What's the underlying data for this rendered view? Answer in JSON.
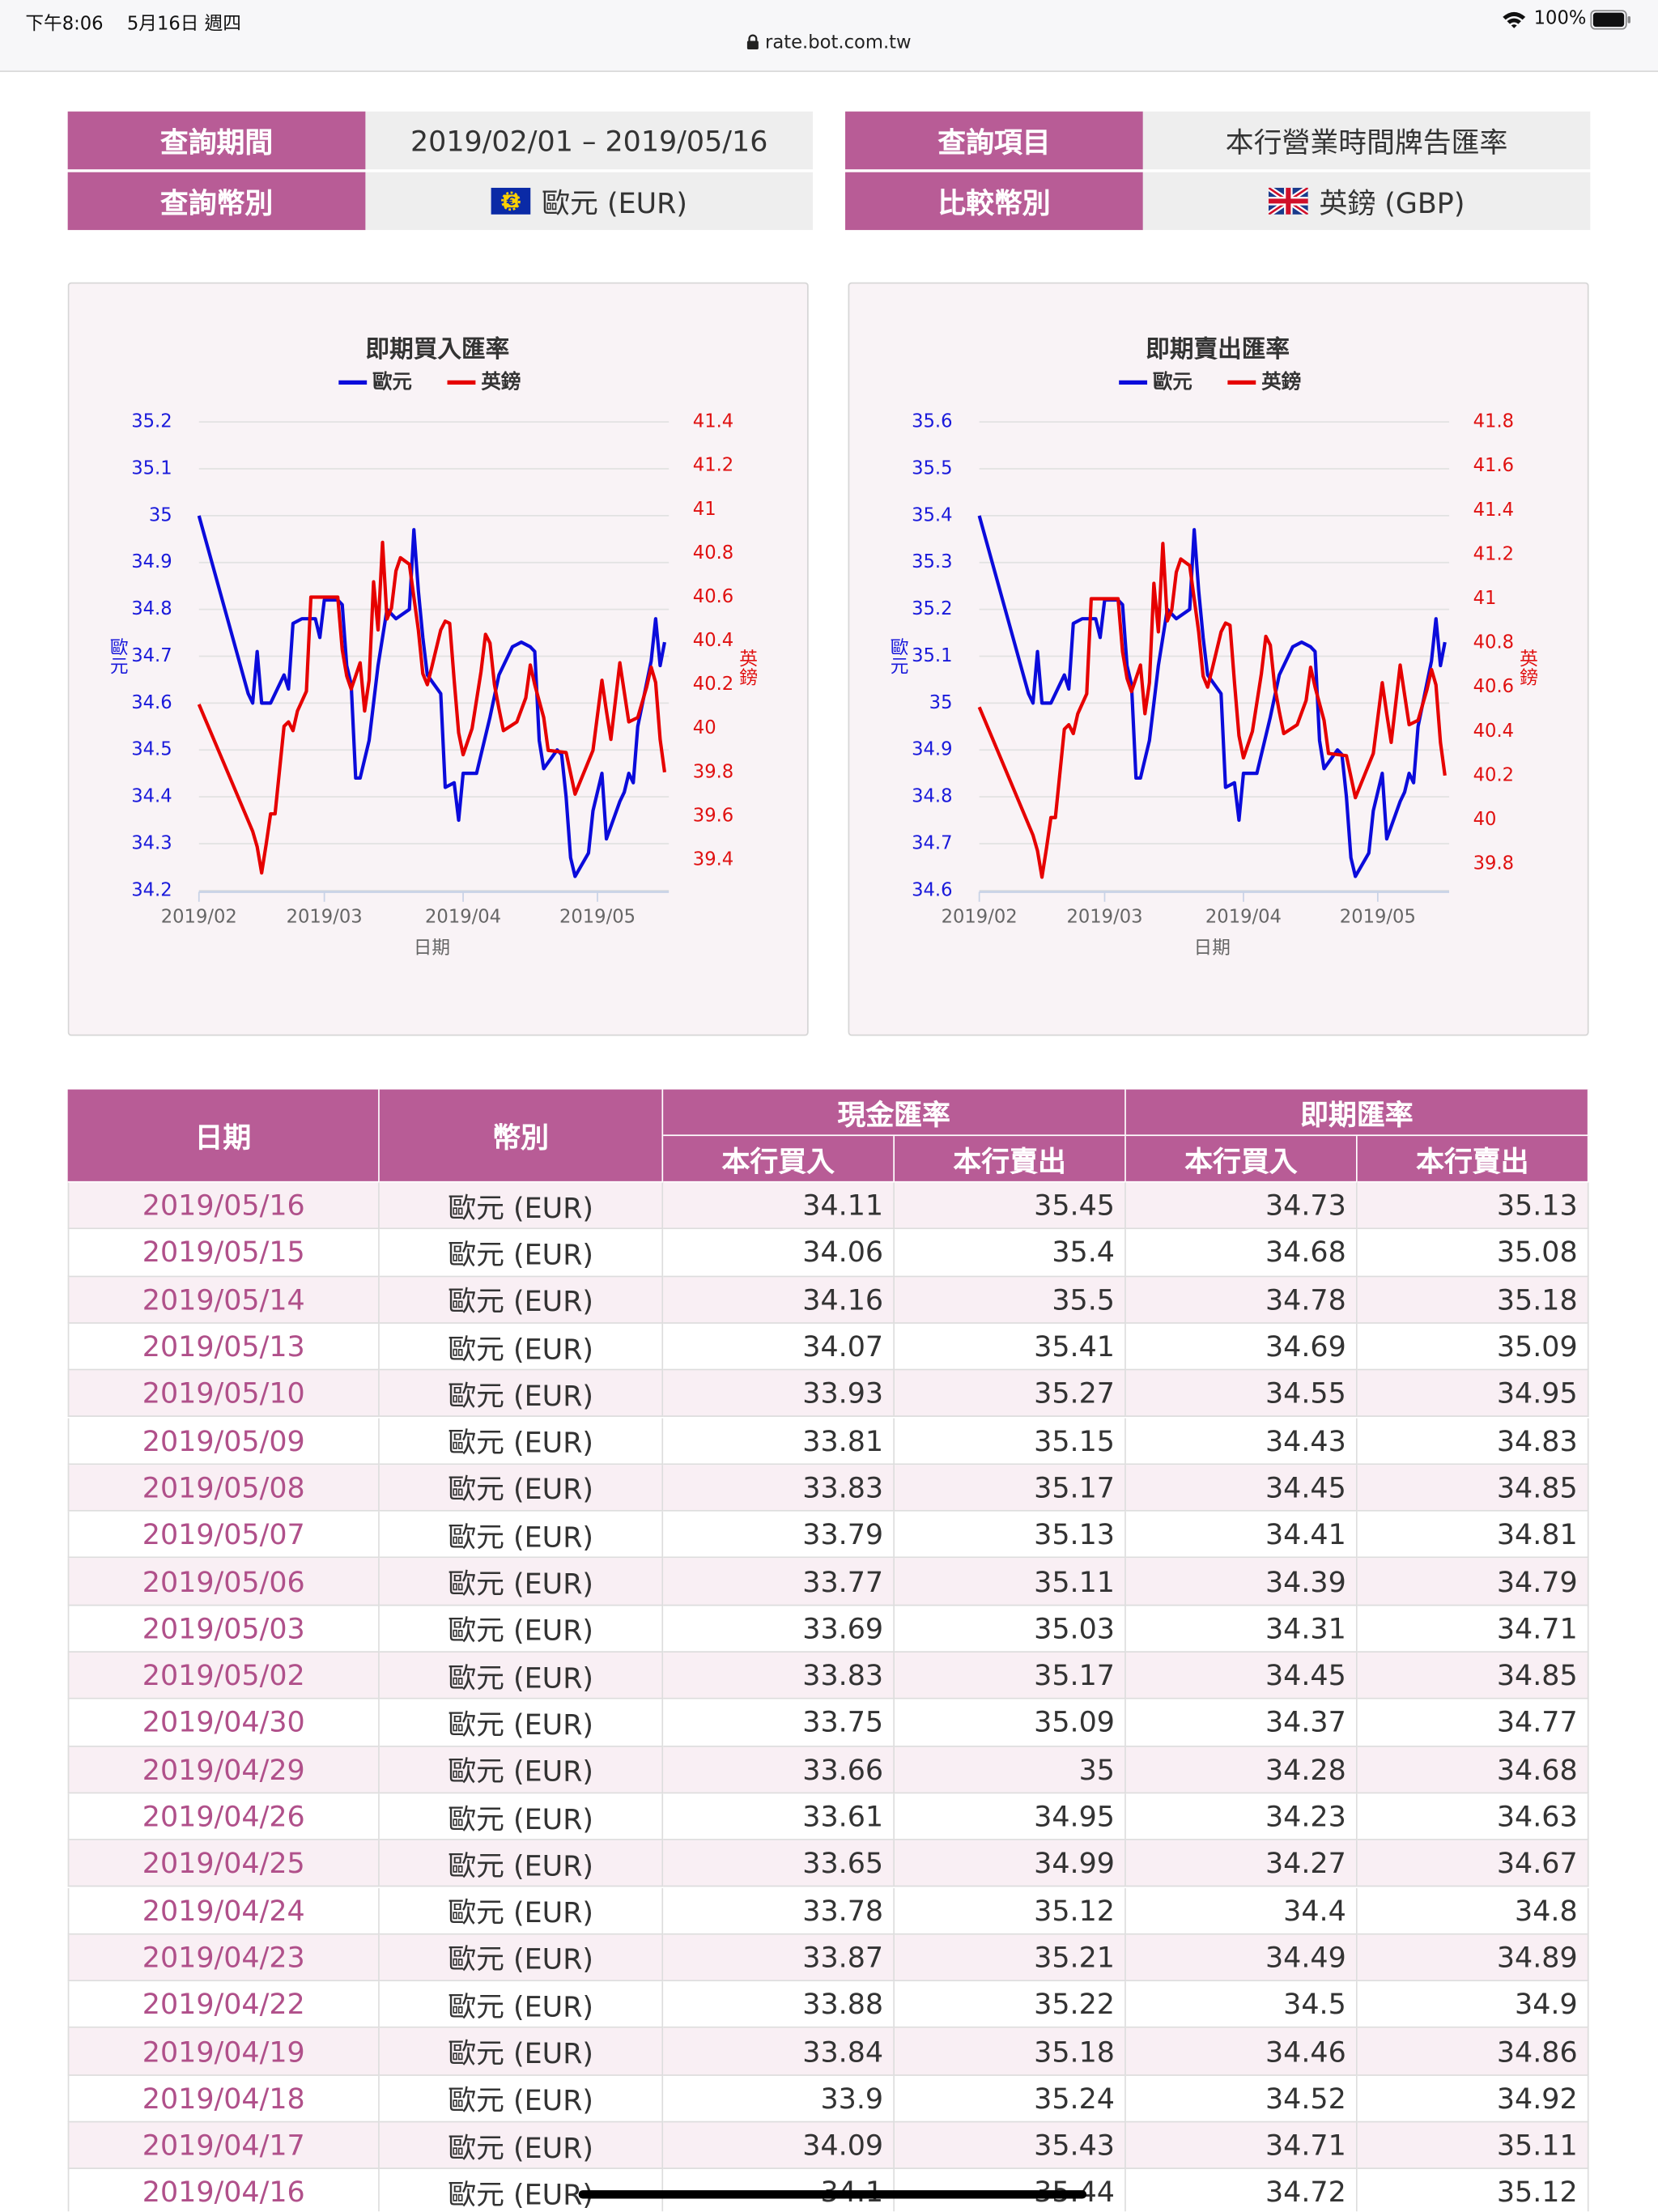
{
  "status_bar": {
    "time": "下午8:06",
    "date": "5月16日 週四",
    "battery": "100%"
  },
  "url": "rate.bot.com.tw",
  "query": {
    "period_label": "查詢期間",
    "period": "2019/02/01 – 2019/05/16",
    "currency_label": "查詢幣別",
    "currency": "歐元 (EUR)",
    "item_label": "查詢項目",
    "item": "本行營業時間牌告匯率",
    "compare_label": "比較幣別",
    "compare": "英鎊 (GBP)"
  },
  "charts": [
    {
      "type": "line",
      "title": "即期買入匯率",
      "x_label": "日期",
      "y_label": "歐元",
      "y2_label": "英鎊",
      "xlim": [
        0,
        104
      ],
      "xticks": [
        {
          "value": 0,
          "label": "2019/02"
        },
        {
          "value": 28,
          "label": "2019/03"
        },
        {
          "value": 59,
          "label": "2019/04"
        },
        {
          "value": 89,
          "label": "2019/05"
        }
      ],
      "ylim": [
        34.2,
        35.2
      ],
      "yticks": [
        34.2,
        34.3,
        34.4,
        34.5,
        34.6,
        34.7,
        34.8,
        34.9,
        35,
        35.1,
        35.2
      ],
      "y2lim": [
        39.26,
        41.4
      ],
      "y2ticks": [
        39.4,
        39.6,
        39.8,
        40,
        40.2,
        40.4,
        40.6,
        40.8,
        41,
        41.2,
        41.4
      ],
      "grid": true,
      "series": [
        {
          "name": "歐元",
          "color": "#0b0bdb",
          "x": [
            0,
            11,
            12,
            13,
            14,
            16,
            18,
            19,
            20,
            21,
            23,
            26,
            27,
            28,
            31,
            32,
            33,
            34,
            35,
            36,
            38,
            40,
            42,
            44,
            47,
            48,
            49,
            50,
            51,
            54,
            55,
            57,
            58,
            59,
            62,
            65,
            67,
            70,
            72,
            74,
            75,
            76,
            77,
            80,
            81,
            82,
            83,
            84,
            87,
            88,
            90,
            91,
            94,
            95,
            96,
            97,
            98,
            101,
            102,
            103,
            104
          ],
          "values": [
            35,
            34.62,
            34.6,
            34.71,
            34.6,
            34.6,
            34.64,
            34.66,
            34.63,
            34.77,
            34.78,
            34.78,
            34.74,
            34.82,
            34.82,
            34.81,
            34.68,
            34.64,
            34.44,
            34.44,
            34.52,
            34.68,
            34.8,
            34.78,
            34.8,
            34.97,
            34.84,
            34.74,
            34.66,
            34.62,
            34.42,
            34.43,
            34.35,
            34.45,
            34.45,
            34.57,
            34.66,
            34.72,
            34.73,
            34.72,
            34.71,
            34.52,
            34.46,
            34.5,
            34.49,
            34.4,
            34.27,
            34.23,
            34.28,
            34.37,
            34.45,
            34.31,
            34.39,
            34.41,
            34.45,
            34.43,
            34.55,
            34.69,
            34.78,
            34.68,
            34.73
          ]
        },
        {
          "name": "英鎊",
          "color": "#e60000",
          "axis": "y2",
          "x": [
            0,
            12,
            13,
            14,
            15,
            16,
            17,
            19,
            20,
            21,
            22,
            24,
            25,
            31,
            32,
            33,
            34,
            36,
            37,
            38,
            39,
            40,
            41,
            42,
            43,
            44,
            45,
            47,
            48,
            49,
            50,
            51,
            52,
            54,
            55,
            56,
            57,
            58,
            59,
            61,
            63,
            64,
            65,
            66,
            67,
            68,
            71,
            73,
            74,
            75,
            77,
            78,
            82,
            84,
            86,
            88,
            90,
            91,
            92,
            94,
            96,
            98,
            100,
            101,
            102,
            103,
            104
          ],
          "values": [
            40.11,
            39.53,
            39.46,
            39.34,
            39.47,
            39.61,
            39.61,
            40.01,
            40.03,
            39.99,
            40.08,
            40.17,
            40.6,
            40.6,
            40.36,
            40.24,
            40.18,
            40.3,
            40.08,
            40.22,
            40.67,
            40.45,
            40.85,
            40.5,
            40.55,
            40.72,
            40.78,
            40.75,
            40.6,
            40.45,
            40.25,
            40.2,
            40.28,
            40.45,
            40.49,
            40.48,
            40.22,
            39.98,
            39.88,
            40,
            40.26,
            40.43,
            40.39,
            40.2,
            40.09,
            39.99,
            40.03,
            40.14,
            40.29,
            40.2,
            40.05,
            39.9,
            39.89,
            39.7,
            39.8,
            39.9,
            40.22,
            40.08,
            39.95,
            40.3,
            40.03,
            40.05,
            40.19,
            40.28,
            40.21,
            39.95,
            39.8
          ]
        }
      ]
    },
    {
      "type": "line",
      "title": "即期賣出匯率",
      "x_label": "日期",
      "y_label": "歐元",
      "y2_label": "英鎊",
      "xlim": [
        0,
        104
      ],
      "xticks": [
        {
          "value": 0,
          "label": "2019/02"
        },
        {
          "value": 28,
          "label": "2019/03"
        },
        {
          "value": 59,
          "label": "2019/04"
        },
        {
          "value": 89,
          "label": "2019/05"
        }
      ],
      "ylim": [
        34.6,
        35.6
      ],
      "yticks": [
        34.6,
        34.7,
        34.8,
        34.9,
        35,
        35.1,
        35.2,
        35.3,
        35.4,
        35.5,
        35.6
      ],
      "y2lim": [
        39.68,
        41.8
      ],
      "y2ticks": [
        39.8,
        40,
        40.2,
        40.4,
        40.6,
        40.8,
        41,
        41.2,
        41.4,
        41.6,
        41.8
      ],
      "grid": true,
      "series": [
        {
          "name": "歐元",
          "color": "#0b0bdb",
          "x": [
            0,
            11,
            12,
            13,
            14,
            16,
            18,
            19,
            20,
            21,
            23,
            26,
            27,
            28,
            31,
            32,
            33,
            34,
            35,
            36,
            38,
            40,
            42,
            44,
            47,
            48,
            49,
            50,
            51,
            54,
            55,
            57,
            58,
            59,
            62,
            65,
            67,
            70,
            72,
            74,
            75,
            76,
            77,
            80,
            81,
            82,
            83,
            84,
            87,
            88,
            90,
            91,
            94,
            95,
            96,
            97,
            98,
            101,
            102,
            103,
            104
          ],
          "values": [
            35.4,
            35.02,
            35,
            35.11,
            35,
            35,
            35.04,
            35.06,
            35.03,
            35.17,
            35.18,
            35.18,
            35.14,
            35.22,
            35.22,
            35.21,
            35.08,
            35.04,
            34.84,
            34.84,
            34.92,
            35.08,
            35.2,
            35.18,
            35.2,
            35.37,
            35.24,
            35.14,
            35.06,
            35.02,
            34.82,
            34.83,
            34.75,
            34.85,
            34.85,
            34.97,
            35.06,
            35.12,
            35.13,
            35.12,
            35.11,
            34.92,
            34.86,
            34.9,
            34.89,
            34.8,
            34.67,
            34.63,
            34.68,
            34.77,
            34.85,
            34.71,
            34.79,
            34.81,
            34.85,
            34.83,
            34.95,
            35.09,
            35.18,
            35.08,
            35.13
          ]
        },
        {
          "name": "英鎊",
          "color": "#e60000",
          "axis": "y2",
          "x": [
            0,
            12,
            13,
            14,
            15,
            16,
            17,
            19,
            20,
            21,
            22,
            24,
            25,
            31,
            32,
            33,
            34,
            36,
            37,
            38,
            39,
            40,
            41,
            42,
            43,
            44,
            45,
            47,
            48,
            49,
            50,
            51,
            52,
            54,
            55,
            56,
            57,
            58,
            59,
            61,
            63,
            64,
            65,
            66,
            67,
            68,
            71,
            73,
            74,
            75,
            77,
            78,
            82,
            84,
            86,
            88,
            90,
            91,
            92,
            94,
            96,
            98,
            100,
            101,
            102,
            103,
            104
          ],
          "values": [
            40.51,
            39.93,
            39.86,
            39.74,
            39.87,
            40.01,
            40.01,
            40.41,
            40.43,
            40.39,
            40.48,
            40.57,
            41,
            41,
            40.76,
            40.64,
            40.58,
            40.7,
            40.48,
            40.62,
            41.07,
            40.85,
            41.25,
            40.9,
            40.95,
            41.12,
            41.18,
            41.15,
            41,
            40.85,
            40.65,
            40.6,
            40.68,
            40.85,
            40.89,
            40.88,
            40.62,
            40.38,
            40.28,
            40.4,
            40.66,
            40.83,
            40.79,
            40.6,
            40.49,
            40.39,
            40.43,
            40.54,
            40.69,
            40.6,
            40.45,
            40.3,
            40.29,
            40.1,
            40.2,
            40.3,
            40.62,
            40.48,
            40.35,
            40.7,
            40.43,
            40.45,
            40.59,
            40.68,
            40.61,
            40.35,
            40.2
          ]
        }
      ]
    }
  ],
  "table": {
    "header": {
      "date": "日期",
      "currency": "幣別",
      "cash": "現金匯率",
      "spot": "即期匯率",
      "sub": [
        "本行買入",
        "本行賣出",
        "本行買入",
        "本行賣出"
      ]
    },
    "rows": [
      [
        "2019/05/16",
        "歐元 (EUR)",
        34.11,
        35.45,
        34.73,
        35.13
      ],
      [
        "2019/05/15",
        "歐元 (EUR)",
        34.06,
        35.4,
        34.68,
        35.08
      ],
      [
        "2019/05/14",
        "歐元 (EUR)",
        34.16,
        35.5,
        34.78,
        35.18
      ],
      [
        "2019/05/13",
        "歐元 (EUR)",
        34.07,
        35.41,
        34.69,
        35.09
      ],
      [
        "2019/05/10",
        "歐元 (EUR)",
        33.93,
        35.27,
        34.55,
        34.95
      ],
      [
        "2019/05/09",
        "歐元 (EUR)",
        33.81,
        35.15,
        34.43,
        34.83
      ],
      [
        "2019/05/08",
        "歐元 (EUR)",
        33.83,
        35.17,
        34.45,
        34.85
      ],
      [
        "2019/05/07",
        "歐元 (EUR)",
        33.79,
        35.13,
        34.41,
        34.81
      ],
      [
        "2019/05/06",
        "歐元 (EUR)",
        33.77,
        35.11,
        34.39,
        34.79
      ],
      [
        "2019/05/03",
        "歐元 (EUR)",
        33.69,
        35.03,
        34.31,
        34.71
      ],
      [
        "2019/05/02",
        "歐元 (EUR)",
        33.83,
        35.17,
        34.45,
        34.85
      ],
      [
        "2019/04/30",
        "歐元 (EUR)",
        33.75,
        35.09,
        34.37,
        34.77
      ],
      [
        "2019/04/29",
        "歐元 (EUR)",
        33.66,
        35,
        34.28,
        34.68
      ],
      [
        "2019/04/26",
        "歐元 (EUR)",
        33.61,
        34.95,
        34.23,
        34.63
      ],
      [
        "2019/04/25",
        "歐元 (EUR)",
        33.65,
        34.99,
        34.27,
        34.67
      ],
      [
        "2019/04/24",
        "歐元 (EUR)",
        33.78,
        35.12,
        34.4,
        34.8
      ],
      [
        "2019/04/23",
        "歐元 (EUR)",
        33.87,
        35.21,
        34.49,
        34.89
      ],
      [
        "2019/04/22",
        "歐元 (EUR)",
        33.88,
        35.22,
        34.5,
        34.9
      ],
      [
        "2019/04/19",
        "歐元 (EUR)",
        33.84,
        35.18,
        34.46,
        34.86
      ],
      [
        "2019/04/18",
        "歐元 (EUR)",
        33.9,
        35.24,
        34.52,
        34.92
      ],
      [
        "2019/04/17",
        "歐元 (EUR)",
        34.09,
        35.43,
        34.71,
        35.11
      ],
      [
        "2019/04/16",
        "歐元 (EUR)",
        34.1,
        35.44,
        34.72,
        35.12
      ]
    ]
  }
}
